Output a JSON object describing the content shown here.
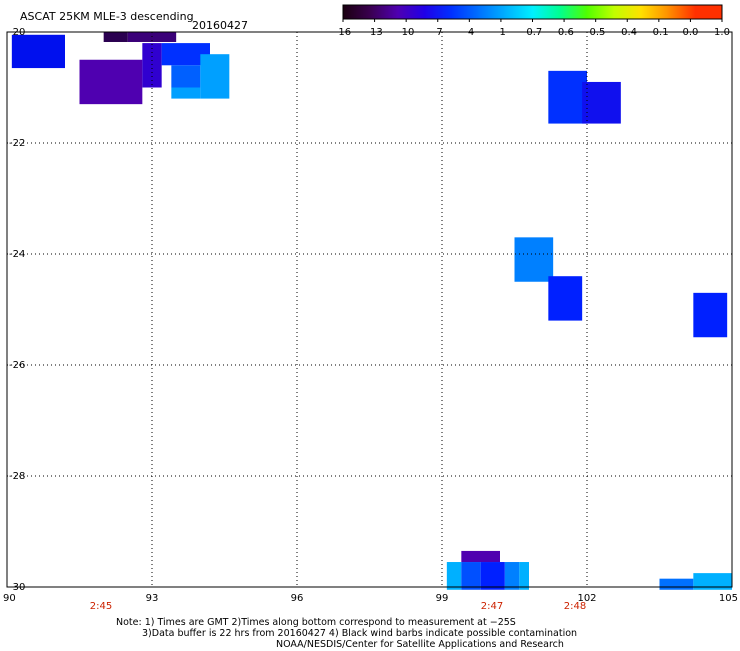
{
  "title": "ASCAT 25KM MLE-3 descending",
  "date": "20160427",
  "colorbar": {
    "labels": [
      "-16",
      "-13",
      "-10",
      "-7",
      "-4",
      "-1",
      "-0.7",
      "-0.6",
      "-0.5",
      "-0.4",
      "-0.1",
      "0.0",
      "1.0"
    ],
    "colors": [
      "#1a0010",
      "#3a0050",
      "#4f00b0",
      "#2000e8",
      "#0030ff",
      "#0070ff",
      "#00b0ff",
      "#00f0ff",
      "#00ff90",
      "#50ff00",
      "#c0ff00",
      "#ffe000",
      "#ff9000",
      "#ff3000"
    ]
  },
  "axes": {
    "x_ticks": [
      "90",
      "93",
      "96",
      "99",
      "102",
      "105"
    ],
    "y_ticks": [
      "-20",
      "-22",
      "-24",
      "-26",
      "-28",
      "-30"
    ],
    "time_labels": [
      "2:45",
      "2:47",
      "2:48"
    ]
  },
  "cells": [
    {
      "lon": [
        90.1,
        91.2
      ],
      "lat": [
        -20.05,
        -20.65
      ],
      "color": "#0010ee"
    },
    {
      "lon": [
        92.0,
        92.5
      ],
      "lat": [
        -20.0,
        -20.18
      ],
      "color": "#2a0050"
    },
    {
      "lon": [
        92.5,
        93.5
      ],
      "lat": [
        -20.0,
        -20.18
      ],
      "color": "#3a0078"
    },
    {
      "lon": [
        91.5,
        92.8
      ],
      "lat": [
        -20.5,
        -21.3
      ],
      "color": "#4f00b0"
    },
    {
      "lon": [
        92.8,
        93.2
      ],
      "lat": [
        -20.2,
        -21.0
      ],
      "color": "#3000d0"
    },
    {
      "lon": [
        93.2,
        94.2
      ],
      "lat": [
        -20.2,
        -20.6
      ],
      "color": "#0030ff"
    },
    {
      "lon": [
        93.4,
        94.0
      ],
      "lat": [
        -20.6,
        -21.0
      ],
      "color": "#0060ff"
    },
    {
      "lon": [
        94.0,
        94.6
      ],
      "lat": [
        -20.4,
        -21.2
      ],
      "color": "#00a0ff"
    },
    {
      "lon": [
        93.4,
        94.0
      ],
      "lat": [
        -21.0,
        -21.2
      ],
      "color": "#00a0ff"
    },
    {
      "lon": [
        101.2,
        102.0
      ],
      "lat": [
        -20.7,
        -21.65
      ],
      "color": "#0030ff"
    },
    {
      "lon": [
        101.9,
        102.7
      ],
      "lat": [
        -20.9,
        -21.65
      ],
      "color": "#1010ee"
    },
    {
      "lon": [
        100.5,
        101.3
      ],
      "lat": [
        -23.7,
        -24.5
      ],
      "color": "#0080ff"
    },
    {
      "lon": [
        101.2,
        101.9
      ],
      "lat": [
        -24.4,
        -25.2
      ],
      "color": "#0020ff"
    },
    {
      "lon": [
        104.2,
        104.9
      ],
      "lat": [
        -24.7,
        -25.5
      ],
      "color": "#0020ff"
    },
    {
      "lon": [
        99.4,
        100.2
      ],
      "lat": [
        -29.35,
        -29.55
      ],
      "color": "#4f00b0"
    },
    {
      "lon": [
        99.1,
        99.4
      ],
      "lat": [
        -29.55,
        -30.05
      ],
      "color": "#00b0ff"
    },
    {
      "lon": [
        99.4,
        99.8
      ],
      "lat": [
        -29.55,
        -30.05
      ],
      "color": "#0050ff"
    },
    {
      "lon": [
        99.8,
        100.3
      ],
      "lat": [
        -29.55,
        -30.05
      ],
      "color": "#0020ff"
    },
    {
      "lon": [
        100.3,
        100.6
      ],
      "lat": [
        -29.55,
        -30.05
      ],
      "color": "#0080ff"
    },
    {
      "lon": [
        100.6,
        100.8
      ],
      "lat": [
        -29.55,
        -30.05
      ],
      "color": "#00b0ff"
    },
    {
      "lon": [
        103.5,
        104.2
      ],
      "lat": [
        -29.85,
        -30.05
      ],
      "color": "#0070ff"
    },
    {
      "lon": [
        104.2,
        105.0
      ],
      "lat": [
        -29.75,
        -30.05
      ],
      "color": "#00b0ff"
    }
  ],
  "notes": {
    "line1": "Note: 1) Times are GMT 2)Times along bottom correspond to measurement at −25S",
    "line2": "3)Data buffer is 22 hrs from 20160427 4) Black wind barbs indicate possible contamination",
    "line3": "NOAA/NESDIS/Center for Satellite Applications and Research"
  }
}
